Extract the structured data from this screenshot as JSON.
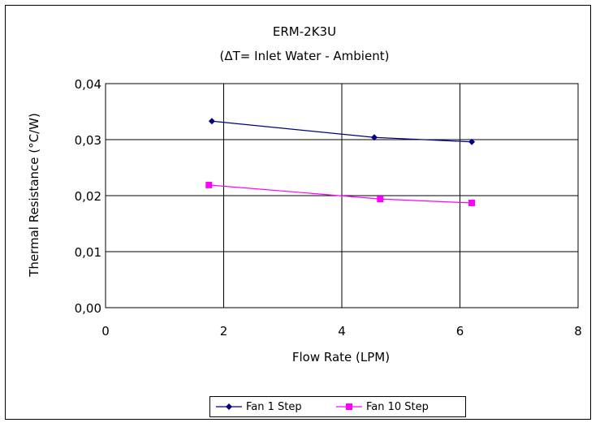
{
  "chart_data": {
    "type": "line",
    "title": "ERM-2K3U",
    "subtitle": "(ΔT= Inlet Water - Ambient)",
    "xlabel": "Flow Rate (LPM)",
    "ylabel": "Thermal Resistance (°C/W)",
    "xlim": [
      0,
      8
    ],
    "ylim": [
      0,
      0.04
    ],
    "x_ticks": [
      0,
      2,
      4,
      6,
      8
    ],
    "x_tick_labels": [
      "0",
      "2",
      "4",
      "6",
      "8"
    ],
    "y_ticks": [
      0,
      0.01,
      0.02,
      0.03,
      0.04
    ],
    "y_tick_labels": [
      "0,00",
      "0,01",
      "0,02",
      "0,03",
      "0,04"
    ],
    "grid": true,
    "legend_position": "bottom",
    "series": [
      {
        "name": "Fan 1 Step",
        "color": "#000080",
        "marker": "diamond",
        "x": [
          1.8,
          4.55,
          6.2
        ],
        "y": [
          0.0333,
          0.0304,
          0.0296
        ]
      },
      {
        "name": "Fan 10 Step",
        "color": "#ff00ff",
        "marker": "square",
        "x": [
          1.75,
          4.65,
          6.2
        ],
        "y": [
          0.0219,
          0.0194,
          0.0187
        ]
      }
    ]
  }
}
